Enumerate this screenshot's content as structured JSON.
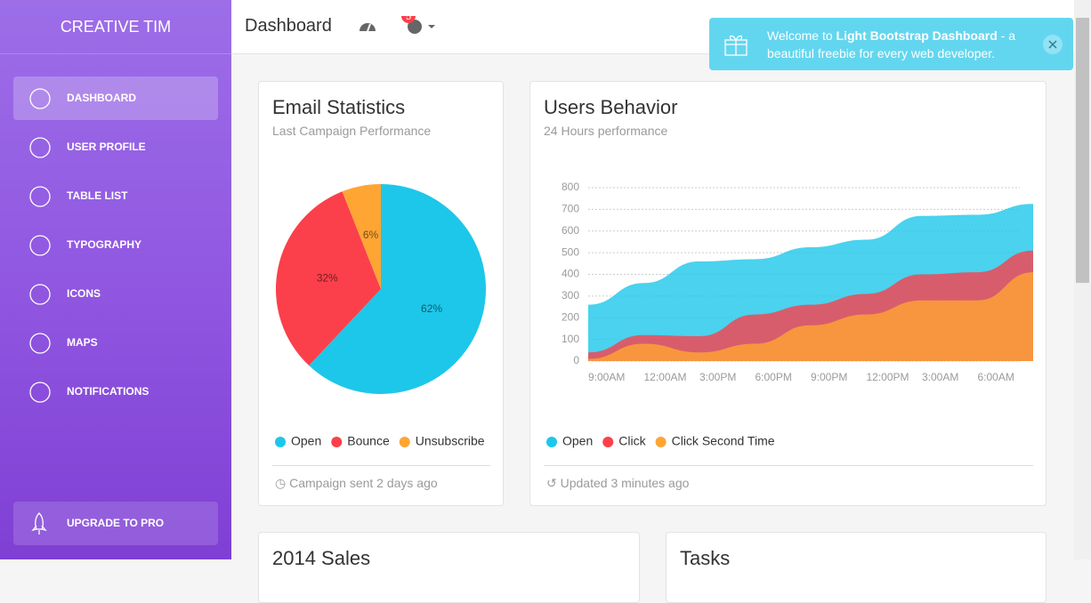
{
  "sidebar": {
    "brand": "CREATIVE TIM",
    "nav": [
      "DASHBOARD",
      "USER PROFILE",
      "TABLE LIST",
      "TYPOGRAPHY",
      "ICONS",
      "MAPS",
      "NOTIFICATIONS"
    ],
    "upgrade": "UPGRADE TO PRO"
  },
  "navbar": {
    "title": "Dashboard",
    "badge": 5
  },
  "notification": {
    "before": "Welcome to ",
    "bold": "Light Bootstrap Dashboard",
    "after": " - a beautiful freebie for every web developer."
  },
  "chart_data": [
    {
      "type": "pie",
      "title": "Email Statistics",
      "subtitle": "Last Campaign Performance",
      "categories": [
        "Open",
        "Bounce",
        "Unsubscribe"
      ],
      "values": [
        62,
        32,
        6
      ],
      "value_labels": [
        "62%",
        "32%",
        "6%"
      ],
      "colors": [
        "#1DC7EA",
        "#FB404B",
        "#FFA534"
      ],
      "footer": "Campaign sent 2 days ago"
    },
    {
      "type": "area",
      "title": "Users Behavior",
      "subtitle": "24 Hours performance",
      "categories": [
        "9:00AM",
        "12:00AM",
        "3:00PM",
        "6:00PM",
        "9:00PM",
        "12:00PM",
        "3:00AM",
        "6:00AM",
        null
      ],
      "series": [
        {
          "name": "Open",
          "color": "#1DC7EA",
          "values": [
            260,
            360,
            460,
            470,
            525,
            560,
            670,
            675,
            725
          ]
        },
        {
          "name": "Click",
          "color": "#FB404B",
          "values": [
            40,
            120,
            115,
            215,
            260,
            310,
            400,
            410,
            510
          ]
        },
        {
          "name": "Click Second Time",
          "color": "#FFA534",
          "values": [
            10,
            80,
            40,
            80,
            165,
            215,
            280,
            280,
            410
          ]
        }
      ],
      "ylim": [
        0,
        800
      ],
      "yticks": [
        0,
        100,
        200,
        300,
        400,
        500,
        600,
        700,
        800
      ],
      "grid": true,
      "footer": "Updated 3 minutes ago"
    }
  ],
  "bottom_cards": [
    "2014 Sales",
    "Tasks"
  ]
}
